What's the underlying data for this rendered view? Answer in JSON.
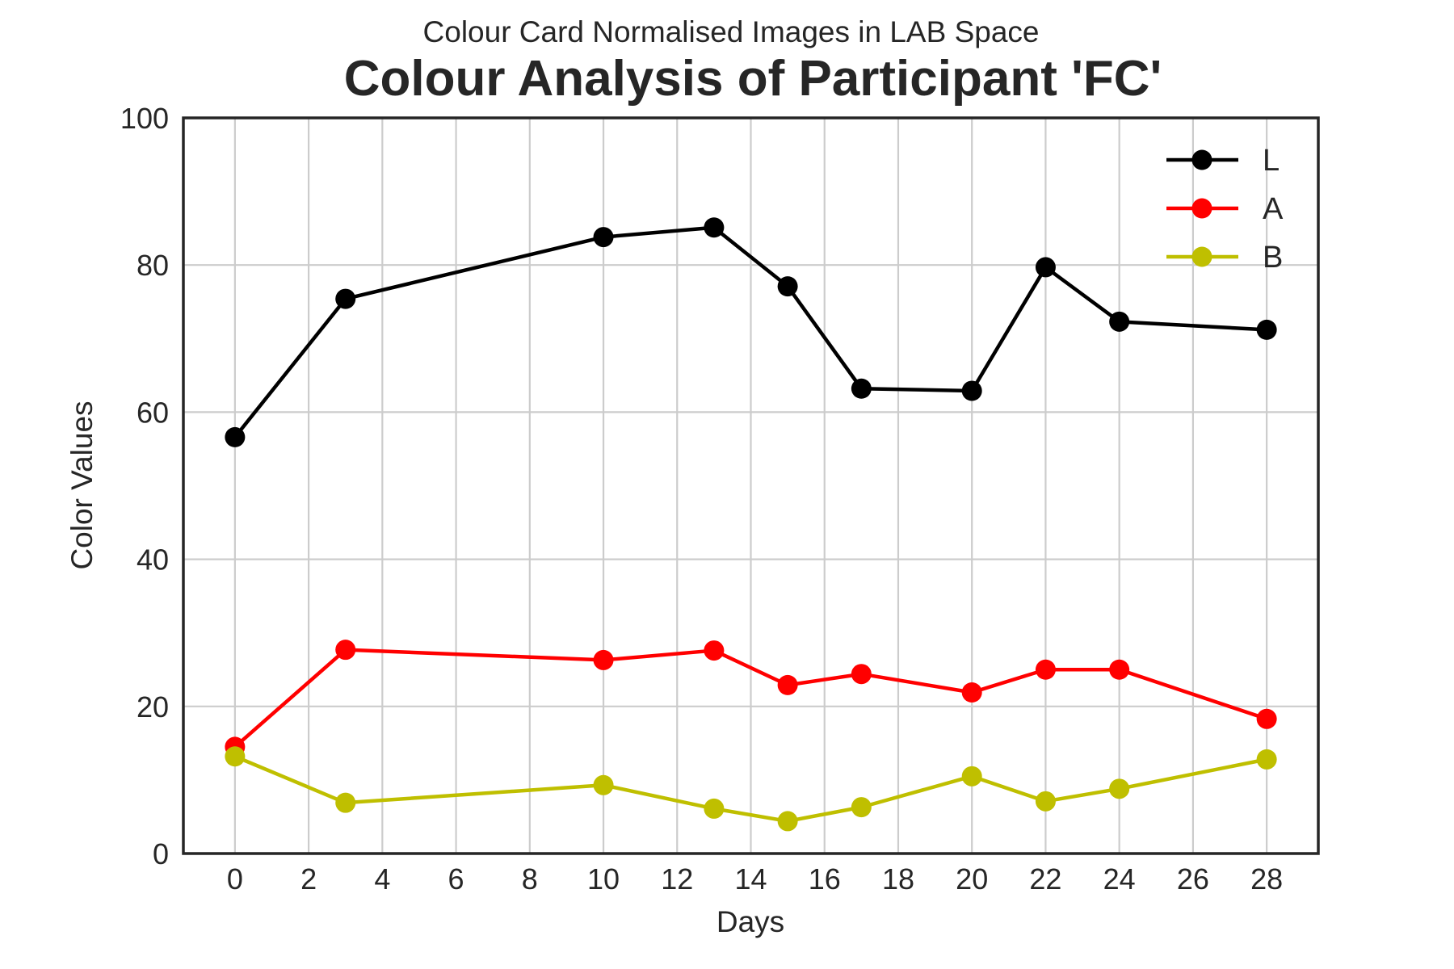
{
  "chart_data": {
    "type": "line",
    "subtitle": "Colour Card Normalised Images in LAB Space",
    "title": "Colour Analysis of Participant 'FC'",
    "xlabel": "Days",
    "ylabel": "Color Values",
    "x": [
      0,
      3,
      10,
      13,
      15,
      17,
      20,
      22,
      24,
      28
    ],
    "xlim": [
      -1.4,
      29.4
    ],
    "ylim": [
      0,
      100
    ],
    "xticks": [
      0,
      2,
      4,
      6,
      8,
      10,
      12,
      14,
      16,
      18,
      20,
      22,
      24,
      26,
      28
    ],
    "yticks": [
      0,
      20,
      40,
      60,
      80,
      100
    ],
    "grid": true,
    "legend_position": "top-right",
    "series": [
      {
        "name": "L",
        "color": "#000000",
        "values": [
          56.6,
          75.4,
          83.8,
          85.1,
          77.1,
          63.2,
          62.9,
          79.7,
          72.3,
          71.2
        ]
      },
      {
        "name": "A",
        "color": "#ff0000",
        "values": [
          14.5,
          27.7,
          26.3,
          27.6,
          22.9,
          24.4,
          21.9,
          25.0,
          25.0,
          18.3
        ]
      },
      {
        "name": "B",
        "color": "#bfbf00",
        "values": [
          13.2,
          6.9,
          9.3,
          6.1,
          4.4,
          6.3,
          10.5,
          7.1,
          8.8,
          12.8
        ]
      }
    ]
  }
}
